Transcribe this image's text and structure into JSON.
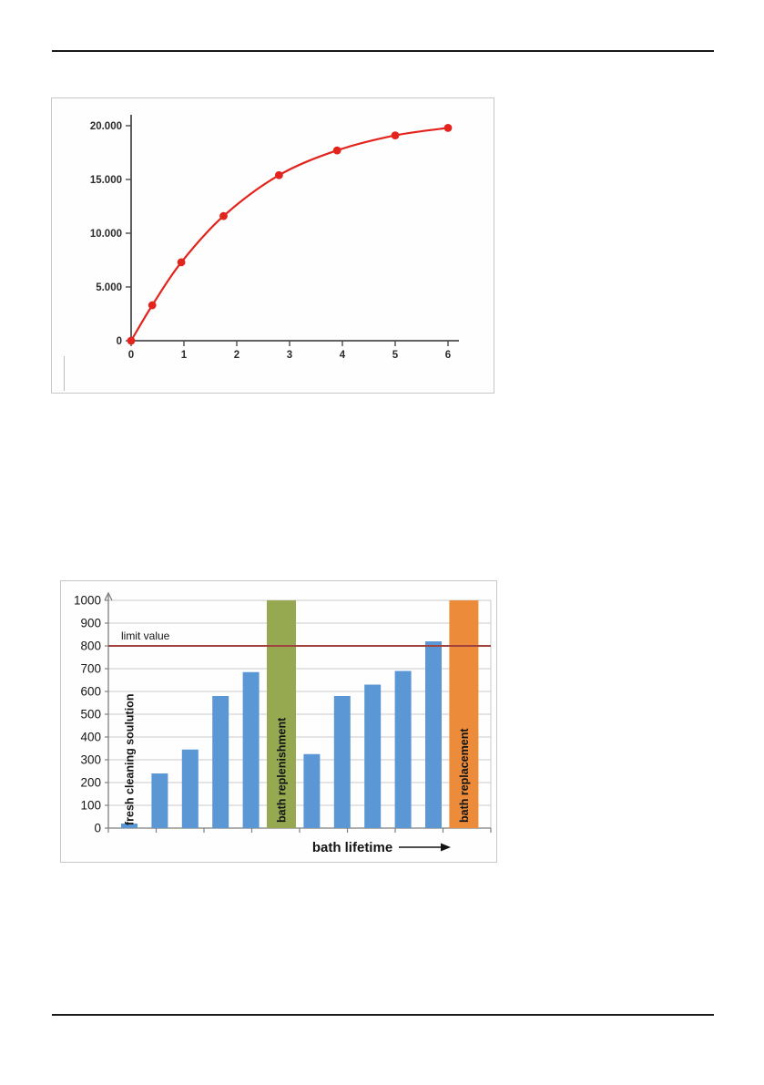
{
  "page": {
    "background": "#ffffff",
    "rule_color": "#1a1a1a"
  },
  "chart_data": [
    {
      "type": "line",
      "title": "",
      "xlabel": "",
      "ylabel": "",
      "x": [
        0,
        0.4,
        0.95,
        1.75,
        2.8,
        3.9,
        5.0,
        6.0
      ],
      "y": [
        0,
        3300,
        7300,
        11600,
        15400,
        17700,
        19100,
        19800
      ],
      "xlim": [
        0,
        6
      ],
      "ylim": [
        0,
        20000
      ],
      "xticks": [
        "0",
        "1",
        "2",
        "3",
        "4",
        "5",
        "6"
      ],
      "yticks": [
        {
          "v": 0,
          "label": "0"
        },
        {
          "v": 5000,
          "label": "5.000"
        },
        {
          "v": 10000,
          "label": "10.000"
        },
        {
          "v": 15000,
          "label": "15.000"
        },
        {
          "v": 20000,
          "label": "20.000"
        }
      ],
      "grid": false,
      "legend": null,
      "line_color": "#e2241d",
      "marker_color": "#e2241d",
      "axis_color": "#4c4c4c",
      "tick_label_color": "#2b2b2b"
    },
    {
      "type": "bar",
      "title": "",
      "xlabel": "bath lifetime",
      "ylabel": "",
      "ylim": [
        0,
        1000
      ],
      "ytick_step": 100,
      "grid": true,
      "legend": null,
      "bars": [
        {
          "value": 20,
          "color": "#5b97d5",
          "wide": false,
          "label": ""
        },
        {
          "value": 240,
          "color": "#5b97d5",
          "wide": false,
          "label": ""
        },
        {
          "value": 345,
          "color": "#5b97d5",
          "wide": false,
          "label": ""
        },
        {
          "value": 580,
          "color": "#5b97d5",
          "wide": false,
          "label": ""
        },
        {
          "value": 685,
          "color": "#5b97d5",
          "wide": false,
          "label": ""
        },
        {
          "value": 1000,
          "color": "#96a950",
          "wide": true,
          "label": "bath replenishment"
        },
        {
          "value": 325,
          "color": "#5b97d5",
          "wide": false,
          "label": ""
        },
        {
          "value": 580,
          "color": "#5b97d5",
          "wide": false,
          "label": ""
        },
        {
          "value": 630,
          "color": "#5b97d5",
          "wide": false,
          "label": ""
        },
        {
          "value": 690,
          "color": "#5b97d5",
          "wide": false,
          "label": ""
        },
        {
          "value": 820,
          "color": "#5b97d5",
          "wide": false,
          "label": ""
        },
        {
          "value": 1000,
          "color": "#ec8c3a",
          "wide": true,
          "label": "bath replacement"
        }
      ],
      "first_bar_annotation": "fresh cleaning soulution",
      "limit_line": {
        "value": 800,
        "label": "limit value",
        "color": "#a2423e"
      },
      "bar_color_blue": "#5b97d5",
      "bar_color_green": "#96a950",
      "bar_color_orange": "#ec8c3a",
      "axis_color": "#7f7f7f",
      "grid_color": "#c9c9c9",
      "label_color": "#141414"
    }
  ]
}
